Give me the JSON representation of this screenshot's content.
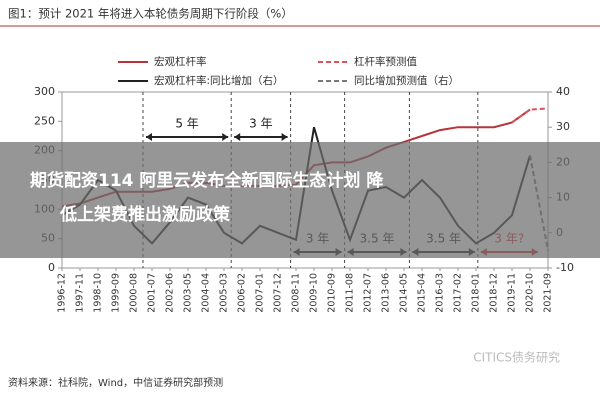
{
  "chart_data": {
    "type": "line",
    "title": "图1：预计 2021 年将进入本轮债务周期下行阶段（%）",
    "source": "资料来源：社科院，Wind，中信证券研究部预测",
    "watermark": "CITICS债务研究",
    "overlay_text": [
      "期货配资114 阿里云发布全新国际生态计划 降",
      "低上架费推出激励政策"
    ],
    "categories": [
      "1996-12",
      "1997-11",
      "1998-10",
      "1999-09",
      "2000-08",
      "2001-07",
      "2002-06",
      "2003-05",
      "2004-04",
      "2005-03",
      "2006-02",
      "2007-01",
      "2007-12",
      "2008-11",
      "2009-10",
      "2010-09",
      "2011-08",
      "2012-07",
      "2013-06",
      "2014-05",
      "2015-04",
      "2016-03",
      "2017-02",
      "2018-01",
      "2018-12",
      "2019-11",
      "2020-10",
      "2021-09"
    ],
    "series": [
      {
        "name": "宏观杠杆率",
        "color": "#b5333a",
        "dash": false,
        "values": [
          105,
          110,
          120,
          130,
          130,
          130,
          135,
          145,
          145,
          140,
          140,
          140,
          140,
          142,
          175,
          180,
          180,
          190,
          205,
          215,
          225,
          235,
          240,
          240,
          240,
          248,
          270,
          null
        ]
      },
      {
        "name": "杠杆率预测值",
        "color": "#d9535a",
        "dash": true,
        "values": [
          null,
          null,
          null,
          null,
          null,
          null,
          null,
          null,
          null,
          null,
          null,
          null,
          null,
          null,
          null,
          null,
          null,
          null,
          null,
          null,
          null,
          null,
          null,
          null,
          null,
          248,
          270,
          272
        ]
      },
      {
        "name": "宏观杠杆率:同比增加（右）",
        "color": "#222222",
        "dash": false,
        "axis": "y2",
        "values": [
          5,
          8,
          15,
          12,
          2,
          -3,
          3,
          10,
          8,
          0,
          -3,
          2,
          0,
          -2,
          30,
          12,
          -2,
          12,
          13,
          10,
          15,
          10,
          2,
          -3,
          0,
          5,
          22,
          null
        ]
      },
      {
        "name": "同比增加预测值（右）",
        "color": "#777777",
        "dash": true,
        "axis": "y2",
        "values": [
          null,
          null,
          null,
          null,
          null,
          null,
          null,
          null,
          null,
          null,
          null,
          null,
          null,
          null,
          null,
          null,
          null,
          null,
          null,
          null,
          null,
          null,
          null,
          null,
          null,
          null,
          22,
          -5
        ]
      }
    ],
    "annotations": [
      "5 年",
      "3 年",
      "3 年",
      "3.5 年",
      "3.5 年",
      "3 年?"
    ],
    "ylim": [
      0,
      300
    ],
    "yticks": [
      0,
      50,
      100,
      150,
      200,
      250,
      300
    ],
    "y2lim": [
      -10,
      40
    ],
    "y2ticks": [
      -10,
      0,
      10,
      20,
      30,
      40
    ]
  }
}
